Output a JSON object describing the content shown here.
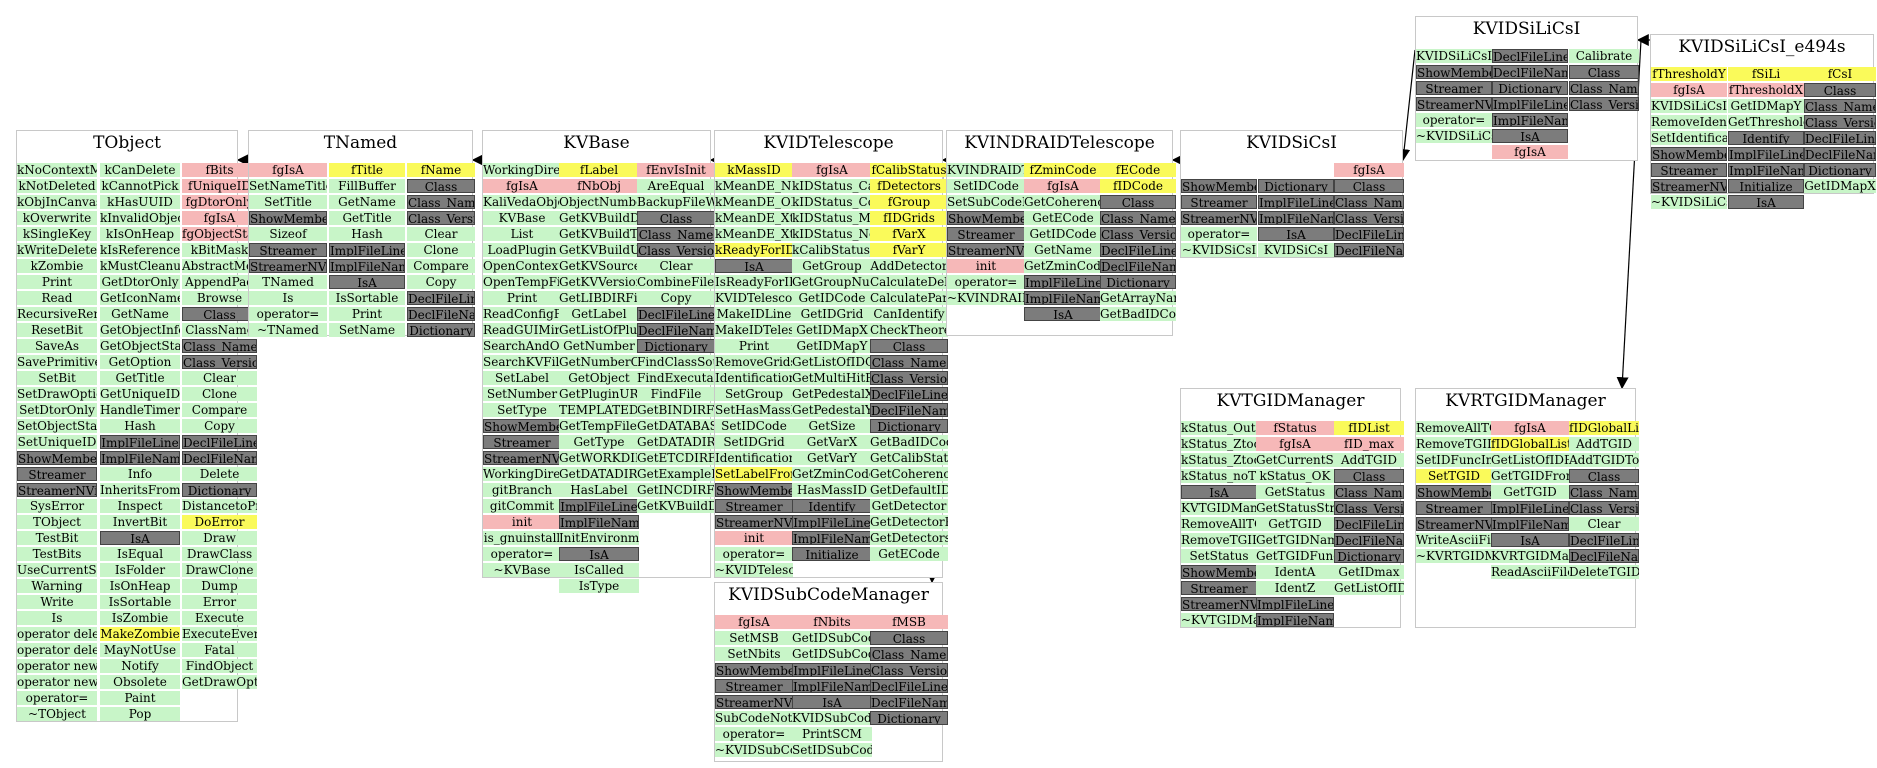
{
  "classes": {
    "tobject": {
      "title": "TObject",
      "col1": [
        "kNoContextMenu",
        "kNotDeleted",
        "kObjInCanvas",
        "kOverwrite",
        "kSingleKey",
        "kWriteDelete",
        "kZombie",
        "Print",
        "Read",
        "RecursiveRemove",
        "ResetBit",
        "SaveAs",
        "SavePrimitive",
        "SetBit",
        "SetDrawOption",
        "SetDtorOnly",
        "SetObjectStat",
        "SetUniqueID",
        "ShowMembers",
        "Streamer",
        "StreamerNVirtual",
        "SysError",
        "TObject",
        "TestBit",
        "TestBits",
        "UseCurrentStyle",
        "Warning",
        "Write",
        "Is",
        "operator delete",
        "operator delete[]",
        "operator new",
        "operator new[]",
        "operator=",
        "~TObject"
      ],
      "col2": [
        "kCanDelete",
        "kCannotPick",
        "kHasUUID",
        "kInvalidObject",
        "kIsOnHeap",
        "kIsReferenced",
        "kMustCleanup",
        "GetDtorOnly",
        "GetIconName",
        "GetName",
        "GetObjectInfo",
        "GetObjectStat",
        "GetOption",
        "GetTitle",
        "GetUniqueID",
        "HandleTimer",
        "Hash",
        "ImplFileLine",
        "ImplFileName",
        "Info",
        "InheritsFrom",
        "Inspect",
        "InvertBit",
        "IsA",
        "IsEqual",
        "IsFolder",
        "IsOnHeap",
        "IsSortable",
        "IsZombie",
        "MakeZombie",
        "MayNotUse",
        "Notify",
        "Obsolete",
        "Paint",
        "Pop"
      ],
      "col3": [
        "fBits",
        "fUniqueID",
        "fgDtorOnly",
        "fgIsA",
        "fgObjectStat",
        "kBitMask",
        "AbstractMethod",
        "AppendPad",
        "Browse",
        "Class",
        "ClassName",
        "Class_Name",
        "Class_Version",
        "Clear",
        "Clone",
        "Compare",
        "Copy",
        "DeclFileLine",
        "DeclFileName",
        "Delete",
        "Dictionary",
        "DistancetoPrimitive",
        "DoError",
        "Draw",
        "DrawClass",
        "DrawClone",
        "Dump",
        "Error",
        "Execute",
        "ExecuteEvent",
        "Fatal",
        "FindObject",
        "GetDrawOption"
      ]
    },
    "tnamed": {
      "title": "TNamed",
      "col1": [
        "fgIsA",
        "SetNameTitle",
        "SetTitle",
        "ShowMembers",
        "Sizeof",
        "Streamer",
        "StreamerNVirtual",
        "TNamed",
        "Is",
        "operator=",
        "~TNamed"
      ],
      "col2": [
        "fTitle",
        "FillBuffer",
        "GetName",
        "GetTitle",
        "Hash",
        "ImplFileLine",
        "ImplFileName",
        "IsA",
        "IsSortable",
        "Print",
        "SetName"
      ],
      "col3": [
        "fName",
        "Class",
        "Class_Name",
        "Class_Version",
        "Clear",
        "Clone",
        "Compare",
        "Copy",
        "DeclFileLine",
        "DeclFileName",
        "Dictionary"
      ]
    },
    "kvbase": {
      "title": "KVBase",
      "col1": [
        "WorkingDirectory",
        "fgIsA",
        "KaliVedaObject",
        "KVBase",
        "List",
        "LoadPlugin",
        "OpenContextMenu",
        "OpenTempFile",
        "Print",
        "ReadConfigFiles",
        "ReadGUIMimeTypes",
        "SearchAndOpenKVFile",
        "SearchKVFile",
        "SetLabel",
        "SetNumber",
        "SetType",
        "ShowMembers",
        "Streamer",
        "StreamerNVirtual",
        "WorkingDirectory",
        "gitBranch",
        "gitCommit",
        "init",
        "is_gnuinstall",
        "operator=",
        "~KVBase"
      ],
      "col2": [
        "fLabel",
        "fNbObj",
        "ObjectNumber",
        "GetKVBuildDir",
        "GetKVBuildType",
        "GetKVBuildUser",
        "GetKVSourceDir",
        "GetKVVersion",
        "GetLIBDIRFilePath",
        "GetLabel",
        "GetListOfPlugins",
        "GetNumber",
        "GetNumberOfObjects",
        "GetObject",
        "GetPluginURI",
        "TEMPLATEDIRFilePath",
        "GetTempFileName",
        "GetType",
        "GetWORKDIRFilePath",
        "GetDATADIRFilePath",
        "HasLabel",
        "ImplFileLine",
        "ImplFileName",
        "InitEnvironment",
        "IsA",
        "IsCalled",
        "IsType"
      ],
      "col3": [
        "fEnvIsInit",
        "AreEqual",
        "BackupFileWithDate",
        "Class",
        "Class_Name",
        "Class_Version",
        "Clear",
        "CombineFiles",
        "Copy",
        "DeclFileLine",
        "DeclFileName",
        "Dictionary",
        "FindClassSourceFiles",
        "FindExecutable",
        "FindFile",
        "GetBINDIRFilePath",
        "GetDATABASEFilePath",
        "GetDATADIRFilePath",
        "GetETCDIRFilePath",
        "GetExampleFilePath",
        "GetINCDIRFilePath",
        "GetKVBuildDate"
      ]
    },
    "kvidtelescope": {
      "title": "KVIDTelescope",
      "col1": [
        "kMassID",
        "kMeanDE_NoIdentification",
        "kMeanDE_OK",
        "kMeanDE_XtooLarge",
        "kMeanDE_XtooSmall",
        "kReadyForID",
        "IsA",
        "IsReadyForID",
        "KVIDTelescope",
        "MakeIDLine",
        "MakeIDTelescope",
        "Print",
        "RemoveGrids",
        "IdentificationParameters",
        "SetGroup",
        "SetHasMassID",
        "SetIDCode",
        "SetIDGrid",
        "IdentificationParameters",
        "SetLabelFromURI",
        "ShowMembers",
        "Streamer",
        "StreamerNVirtual",
        "init",
        "operator=",
        "~KVIDTelescope"
      ],
      "col2": [
        "fgIsA",
        "kIDStatus_CalculateTelescope",
        "kIDStatus_CoherencyGroup",
        "kIDStatus_MultiHit",
        "kIDStatus_NoCalibration",
        "kCalibStatus_OK",
        "GetGroup",
        "GetGroupNumber",
        "GetIDCode",
        "GetIDGrid",
        "GetIDMapX",
        "GetIDMapY",
        "GetListOfIDGrids",
        "GetMultiHitFirstStage",
        "GetPedestalX",
        "GetPedestalY",
        "GetSize",
        "GetVarX",
        "GetVarY",
        "GetZminCode",
        "HasMassID",
        "Identify",
        "ImplFileLine",
        "ImplFileName",
        "Initialize"
      ],
      "col3": [
        "fCalibStatus",
        "fDetectors",
        "fGroup",
        "fIDGrids",
        "fVarX",
        "fVarY",
        "AddDetector",
        "CalculateDeltaE_Energy",
        "CalculateParticleEnergy",
        "CanIdentify",
        "CheckTheoreticalIdentificationThreshold",
        "Class",
        "Class_Name",
        "Class_Version",
        "DeclFileLine",
        "DeclFileName",
        "Dictionary",
        "GetBadIDCode",
        "GetCalibStatus",
        "GetCoherencyIDCode",
        "GetDefaultIDGrid",
        "GetDetector",
        "GetDetectorRank",
        "GetDetectors",
        "GetECode"
      ]
    },
    "kvindraidtelescope": {
      "title": "KVINDRAIDTelescope",
      "col1": [
        "KVINDRAIDTelescope",
        "SetIDCode",
        "SetSubCodeManager",
        "ShowMembers",
        "Streamer",
        "StreamerNVirtual",
        "init",
        "operator=",
        "~KVINDRAIDTelescope"
      ],
      "col2": [
        "fZminCode",
        "fgIsA",
        "GetCoherencyIDCode",
        "GetECode",
        "GetIDCode",
        "GetName",
        "GetZminCode",
        "ImplFileLine",
        "ImplFileName",
        "IsA"
      ],
      "col3": [
        "fECode",
        "fIDCode",
        "Class",
        "Class_Name",
        "Class_Version",
        "DeclFileLine",
        "DeclFileName",
        "Dictionary",
        "GetArrayName",
        "GetBadIDCode"
      ]
    },
    "kvidsicsi": {
      "title": "KVIDSiCsI",
      "col1": [
        "ShowMembers",
        "Streamer",
        "StreamerNVirtual",
        "operator=",
        "~KVIDSiCsI"
      ],
      "col2": [
        "Dictionary",
        "ImplFileLine",
        "ImplFileName",
        "IsA",
        "KVIDSiCsI"
      ],
      "col3": [
        "fgIsA",
        "Class",
        "Class_Name",
        "Class_Version",
        "DeclFileLine",
        "DeclFileName"
      ]
    },
    "kvidsilicsi": {
      "title": "KVIDSiLiCsI",
      "col1": [
        "KVIDSiLiCsI",
        "ShowMembers",
        "Streamer",
        "StreamerNVirtual",
        "operator=",
        "~KVIDSiLiCsI"
      ],
      "col2": [
        "DeclFileLine",
        "DeclFileName",
        "Dictionary",
        "ImplFileLine",
        "ImplFileName",
        "IsA",
        "fgIsA"
      ],
      "col3": [
        "Calibrate",
        "Class",
        "Class_Name",
        "Class_Version"
      ]
    },
    "kvidsilicsi_e494s": {
      "title": "KVIDSiLiCsI_e494s",
      "col1": [
        "fThresholdY",
        "fgIsA",
        "KVIDSiLiCsI_e494s",
        "RemoveIdentificationParameters",
        "SetIdentificationParameters",
        "ShowMembers",
        "Streamer",
        "StreamerNVirtual",
        "~KVIDSiLiCsI_e494s"
      ],
      "col2": [
        "fSiLi",
        "fThresholdX",
        "GetIDMapY",
        "GetThresholdFromVar",
        "Identify",
        "ImplFileLine",
        "ImplFileName",
        "Initialize",
        "IsA"
      ],
      "col3": [
        "fCsI",
        "Class",
        "Class_Name",
        "Class_Version",
        "DeclFileLine",
        "DeclFileName",
        "Dictionary",
        "GetIDMapX"
      ]
    },
    "kvidsubcodemanager": {
      "title": "KVIDSubCodeManager",
      "col1": [
        "fgIsA",
        "SetMSB",
        "SetNbits",
        "ShowMembers",
        "Streamer",
        "StreamerNVirtual",
        "SubCodeNotSet",
        "operator=",
        "~KVIDSubCodeManager"
      ],
      "col2": [
        "fNbits",
        "GetIDSubCode",
        "GetIDSubCodeString",
        "ImplFileLine",
        "ImplFileName",
        "IsA",
        "KVIDSubCodeManager",
        "PrintSCM",
        "SetIDSubCode"
      ],
      "col3": [
        "fMSB",
        "Class",
        "Class_Name",
        "Class_Version",
        "DeclFileLine",
        "DeclFileName",
        "Dictionary"
      ]
    },
    "kvtgidmanager": {
      "title": "KVTGIDManager",
      "col1": [
        "kStatus_OutOfIDRange",
        "kStatus_ZtooLarge",
        "kStatus_ZtooSmall",
        "kStatus_noTGID",
        "IsA",
        "KVTGIDManager",
        "RemoveAllTGID",
        "RemoveTGID",
        "SetStatus",
        "ShowMembers",
        "Streamer",
        "StreamerNVirtual",
        "~KVTGIDManager"
      ],
      "col2": [
        "fStatus",
        "fgIsA",
        "GetCurrentStatus",
        "kStatus_OK",
        "GetStatus",
        "GetStatusString",
        "GetTGID",
        "GetTGIDName",
        "GetTGIDFunctional",
        "IdentA",
        "IdentZ",
        "ImplFileLine",
        "ImplFileName"
      ],
      "col3": [
        "fIDList",
        "fID_max",
        "AddTGID",
        "Class",
        "Class_Name",
        "Class_Version",
        "DeclFileLine",
        "DeclFileName",
        "Dictionary",
        "GetIDmax",
        "GetListOfIDFunctions"
      ]
    },
    "kvrtgidmanager": {
      "title": "KVRTGIDManager",
      "col1": [
        "RemoveAllTGID",
        "RemoveTGID",
        "SetIDFuncInTelescopes",
        "SetTGID",
        "ShowMembers",
        "Streamer",
        "StreamerNVirtual",
        "WriteAsciiFile",
        "~KVRTGIDManager"
      ],
      "col2": [
        "fgIsA",
        "fIDGlobalList",
        "GetListOfIDFunctions",
        "GetTGIDFromIDGridManager",
        "GetTGID",
        "ImplFileLine",
        "ImplFileName",
        "IsA",
        "KVRTGIDManager",
        "ReadAsciiFile"
      ],
      "col3": [
        "fIDGlobalList",
        "AddTGID",
        "AddTGIDToGlobalList",
        "Class",
        "Class_Name",
        "Class_Version",
        "Clear",
        "DeclFileLine",
        "DeclFileName",
        "DeleteTGID"
      ]
    }
  },
  "colors": {
    "public_method": "#c8f5c8",
    "generated": "#7c7c7c",
    "private_member": "#f6b8b8",
    "protected_member": "#fafa5a",
    "box_border": "#c8c8c8"
  }
}
